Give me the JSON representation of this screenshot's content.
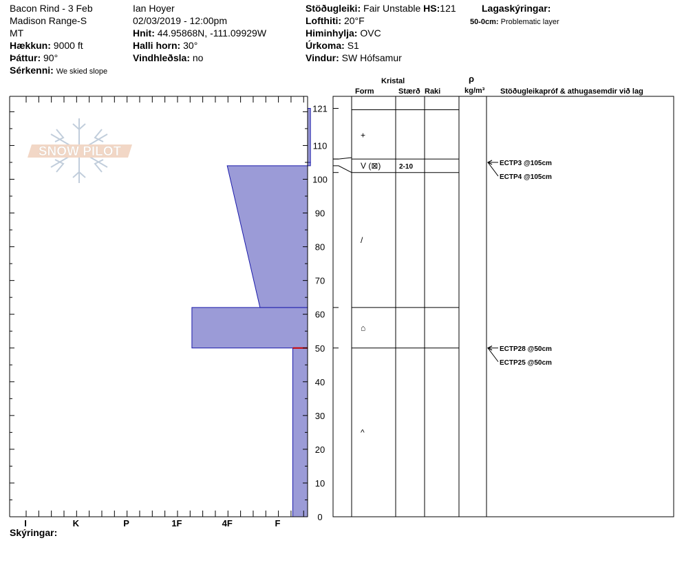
{
  "header": {
    "col1": {
      "title": "Bacon Rind - 3 Feb",
      "range": "Madison Range-S",
      "state": "MT",
      "elevation_label": "Hækkun:",
      "elevation_value": "9000 ft",
      "aspect_label": "Þáttur:",
      "aspect_value": "90°",
      "features_label": "Sérkenni:",
      "features_value": "We skied slope"
    },
    "col2": {
      "observer": "Ian Hoyer",
      "datetime": "02/03/2019 - 12:00pm",
      "coords_label": "Hnit:",
      "coords_value": "44.95868N, -111.09929W",
      "slope_label": "Halli horn:",
      "slope_value": "30°",
      "wind_loading_label": "Vindhleðsla:",
      "wind_loading_value": "no"
    },
    "col3": {
      "stability_label": "Stöðugleiki:",
      "stability_value": "Fair Unstable",
      "hs_label": "HS:",
      "hs_value": "121",
      "air_temp_label": "Lofthiti:",
      "air_temp_value": "20°F",
      "sky_label": "Himinhylja:",
      "sky_value": "OVC",
      "precip_label": "Úrkoma:",
      "precip_value": "S1",
      "wind_label": "Vindur:",
      "wind_value": "SW Hófsamur"
    },
    "col4": {
      "legend_label": "Lagaskýringar:",
      "layer_range": "50-0cm:",
      "layer_note": "Problematic layer"
    }
  },
  "table_headers": {
    "crystal": "Kristal",
    "form": "Form",
    "size": "Stærð",
    "moisture": "Raki",
    "density_symbol": "ρ",
    "density_unit": "kg/m³",
    "comments": "Stöðugleikapróf & athugasemdir við lag"
  },
  "footer": {
    "legend_label": "Skýringar:"
  },
  "logo_text": "SNOW PILOT",
  "colors": {
    "hardness_fill": "#9b9bd7",
    "hardness_stroke": "#1a1aaa",
    "problem_layer": "#cc0000"
  },
  "chart_data": {
    "type": "snow-profile",
    "y_axis": {
      "min": 0,
      "max": 121,
      "ticks": [
        0,
        10,
        20,
        30,
        40,
        50,
        60,
        70,
        80,
        90,
        100,
        110,
        121
      ]
    },
    "hardness_scale": [
      "I",
      "K",
      "P",
      "1F",
      "4F",
      "F"
    ],
    "hardness_layers": [
      {
        "bottom": 0,
        "top": 50,
        "hardness_left": 5.3,
        "hardness_right": 5.3
      },
      {
        "bottom": 50,
        "top": 62,
        "hardness_left": 3.3,
        "hardness_right": 3.3
      },
      {
        "bottom": 62,
        "top": 104,
        "hardness_left": 4.65,
        "hardness_right": 4.0
      },
      {
        "bottom": 104,
        "top": 105,
        "hardness_left": 5.65,
        "hardness_right": 5.65
      },
      {
        "bottom": 105,
        "top": 121,
        "hardness_left": 5.65,
        "hardness_right": 5.65
      }
    ],
    "problem_layer_depth": 50,
    "layer_boundaries": [
      0,
      50,
      62,
      102,
      106,
      121
    ],
    "crystal_forms": [
      {
        "depth": 113,
        "symbol": "+"
      },
      {
        "depth": 104,
        "symbol": "V (⊠)",
        "size": "2-10"
      },
      {
        "depth": 82,
        "symbol": "/"
      },
      {
        "depth": 56,
        "symbol": "⌂"
      },
      {
        "depth": 25,
        "symbol": "^"
      }
    ],
    "tests": [
      {
        "depth": 105,
        "label": "ECTP3 @105cm"
      },
      {
        "depth": 105,
        "label": "ECTP4 @105cm"
      },
      {
        "depth": 50,
        "label": "ECTP28 @50cm"
      },
      {
        "depth": 50,
        "label": "ECTP25 @50cm"
      }
    ]
  }
}
